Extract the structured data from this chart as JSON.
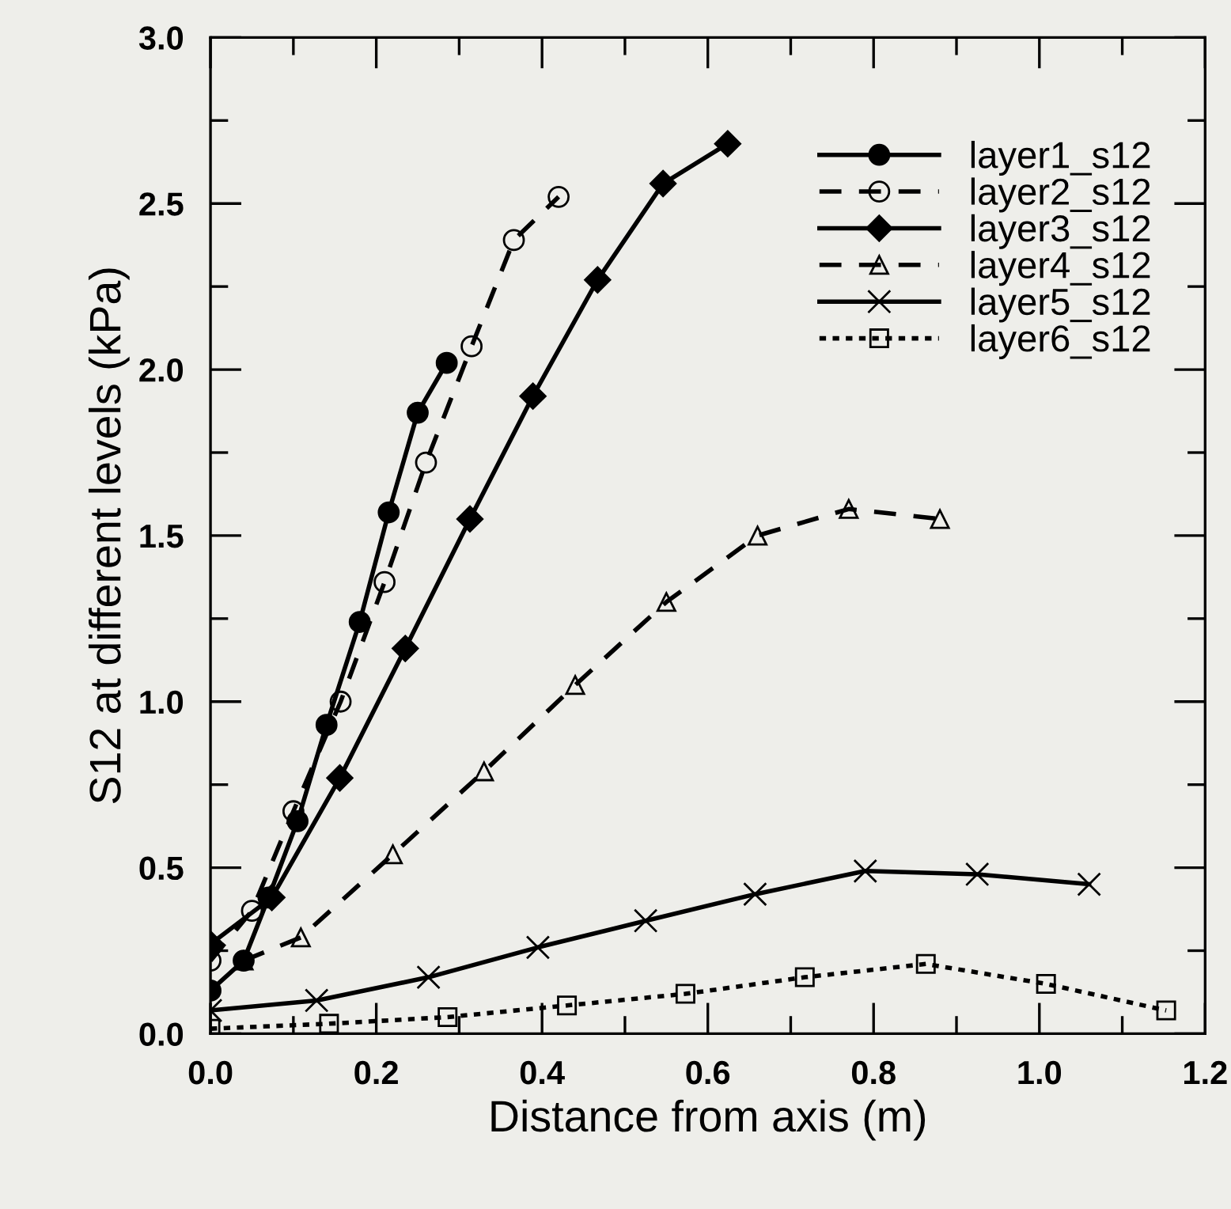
{
  "chart_data": {
    "type": "line",
    "xlabel": "Distance from axis (m)",
    "ylabel": "S12 at different levels (kPa)",
    "xlim": [
      0,
      1.2
    ],
    "ylim": [
      0,
      3.0
    ],
    "xticks": [
      {
        "value": 0,
        "label": "0.0"
      },
      {
        "value": 0.1,
        "label": null
      },
      {
        "value": 0.2,
        "label": "0.2"
      },
      {
        "value": 0.3,
        "label": null
      },
      {
        "value": 0.4,
        "label": "0.4"
      },
      {
        "value": 0.5,
        "label": null
      },
      {
        "value": 0.6,
        "label": "0.6"
      },
      {
        "value": 0.7,
        "label": null
      },
      {
        "value": 0.8,
        "label": "0.8"
      },
      {
        "value": 0.9,
        "label": null
      },
      {
        "value": 1.0,
        "label": "1.0"
      },
      {
        "value": 1.1,
        "label": null
      },
      {
        "value": 1.2,
        "label": "1.2"
      }
    ],
    "yticks": [
      {
        "value": 0,
        "label": "0.0"
      },
      {
        "value": 0.25,
        "label": null
      },
      {
        "value": 0.5,
        "label": "0.5"
      },
      {
        "value": 0.75,
        "label": null
      },
      {
        "value": 1.0,
        "label": "1.0"
      },
      {
        "value": 1.25,
        "label": null
      },
      {
        "value": 1.5,
        "label": "1.5"
      },
      {
        "value": 1.75,
        "label": null
      },
      {
        "value": 2.0,
        "label": "2.0"
      },
      {
        "value": 2.25,
        "label": null
      },
      {
        "value": 2.5,
        "label": "2.5"
      },
      {
        "value": 2.75,
        "label": null
      },
      {
        "value": 3.0,
        "label": "3.0"
      }
    ],
    "grid": false,
    "legend": "top right",
    "series": [
      {
        "name": "layer1_s12",
        "color": "#000000",
        "marker": "circle",
        "line_style": "solid",
        "x": [
          0.0,
          0.04,
          0.07,
          0.105,
          0.14,
          0.18,
          0.215,
          0.25,
          0.285
        ],
        "values": [
          0.13,
          0.22,
          0.41,
          0.64,
          0.93,
          1.24,
          1.57,
          1.87,
          2.02
        ]
      },
      {
        "name": "layer2_s12",
        "color": "#000000",
        "marker": "circle",
        "line_style": "dashed",
        "x": [
          0.0,
          0.05,
          0.1,
          0.157,
          0.21,
          0.26,
          0.315,
          0.366,
          0.42
        ],
        "values": [
          0.22,
          0.37,
          0.67,
          1.0,
          1.36,
          1.72,
          2.07,
          2.39,
          2.52
        ]
      },
      {
        "name": "layer3_s12",
        "color": "#000000",
        "marker": "diamond",
        "line_style": "solid",
        "x": [
          0.0,
          0.074,
          0.156,
          0.235,
          0.313,
          0.389,
          0.467,
          0.546,
          0.624
        ],
        "values": [
          0.27,
          0.41,
          0.77,
          1.16,
          1.55,
          1.92,
          2.27,
          2.56,
          2.68
        ]
      },
      {
        "name": "layer4_s12",
        "color": "#000000",
        "marker": "triangle",
        "line_style": "dashed",
        "x": [
          0.04,
          0.109,
          0.22,
          0.33,
          0.44,
          0.55,
          0.66,
          0.77,
          0.88
        ],
        "values": [
          0.22,
          0.29,
          0.54,
          0.79,
          1.05,
          1.3,
          1.5,
          1.58,
          1.55
        ]
      },
      {
        "name": "layer5_s12",
        "color": "#000000",
        "marker": "cross",
        "line_style": "solid",
        "x": [
          0.0,
          0.128,
          0.263,
          0.395,
          0.525,
          0.657,
          0.79,
          0.925,
          1.06
        ],
        "values": [
          0.07,
          0.1,
          0.17,
          0.26,
          0.34,
          0.42,
          0.49,
          0.48,
          0.45
        ]
      },
      {
        "name": "layer6_s12",
        "color": "#000000",
        "marker": "square",
        "line_style": "dotted",
        "x": [
          0.0,
          0.143,
          0.286,
          0.43,
          0.573,
          0.717,
          0.863,
          1.008,
          1.153
        ],
        "values": [
          0.015,
          0.03,
          0.05,
          0.085,
          0.12,
          0.17,
          0.21,
          0.15,
          0.07
        ]
      }
    ]
  }
}
